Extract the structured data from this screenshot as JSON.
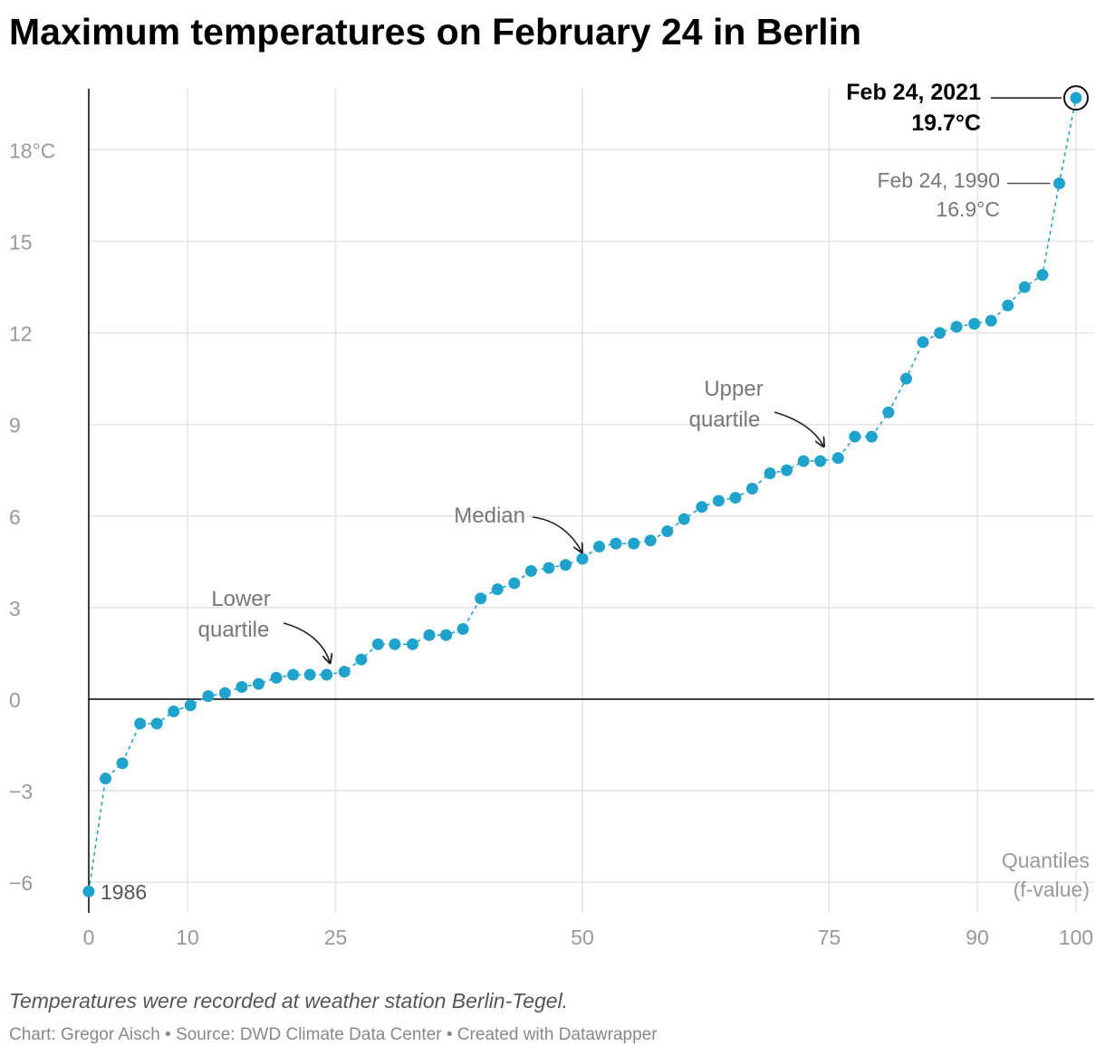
{
  "page": {
    "title": "Maximum temperatures on February 24 in Berlin",
    "notes": "Temperatures were recorded at weather station Berlin-Tegel.",
    "credits": {
      "chart_by": "Chart: Gregor Aisch",
      "source": "Source: DWD Climate Data Center",
      "tool": "Created with Datawrapper",
      "separator": "•"
    }
  },
  "colors": {
    "point": "#1fa3cc",
    "highlight_ring": "#111111",
    "grid": "#e3e3e3",
    "axis": "#000000",
    "tick_label": "#999999",
    "annotation": "#777777",
    "annotation_strong": "#000000"
  },
  "chart_data": {
    "type": "scatter",
    "title": "Maximum temperatures on February 24 in Berlin",
    "xlabel": "Quantiles (f-value)",
    "ylabel": "",
    "xlim": [
      0,
      100
    ],
    "ylim": [
      -7,
      19.7
    ],
    "x_ticks": [
      0,
      10,
      25,
      50,
      75,
      90,
      100
    ],
    "x_tick_labels": [
      "0",
      "10",
      "25",
      "50",
      "75",
      "90",
      "100"
    ],
    "y_ticks": [
      -6,
      -3,
      0,
      3,
      6,
      9,
      12,
      15,
      18
    ],
    "y_tick_labels": [
      "−6",
      "−3",
      "0",
      "3",
      "6",
      "9",
      "12",
      "15",
      "18°C"
    ],
    "grid": true,
    "connector": "dashed",
    "series": [
      {
        "name": "Maximum temperature",
        "x": [
          0,
          1.7,
          3.4,
          5.2,
          6.9,
          8.6,
          10.3,
          12.1,
          13.8,
          15.5,
          17.2,
          19.0,
          20.7,
          22.4,
          24.1,
          25.9,
          27.6,
          29.3,
          31.0,
          32.8,
          34.5,
          36.2,
          37.9,
          39.7,
          41.4,
          43.1,
          44.8,
          46.6,
          48.3,
          50.0,
          51.7,
          53.4,
          55.2,
          56.9,
          58.6,
          60.3,
          62.1,
          63.8,
          65.5,
          67.2,
          69.0,
          70.7,
          72.4,
          74.1,
          75.9,
          77.6,
          79.3,
          81.0,
          82.8,
          84.5,
          86.2,
          87.9,
          89.7,
          91.4,
          93.1,
          94.8,
          96.6,
          98.3,
          100
        ],
        "values": [
          -6.3,
          -2.6,
          -2.1,
          -0.8,
          -0.8,
          -0.4,
          -0.2,
          0.1,
          0.2,
          0.4,
          0.5,
          0.7,
          0.8,
          0.8,
          0.8,
          0.9,
          1.3,
          1.8,
          1.8,
          1.8,
          2.1,
          2.1,
          2.3,
          3.3,
          3.6,
          3.8,
          4.2,
          4.3,
          4.4,
          4.6,
          5.0,
          5.1,
          5.1,
          5.2,
          5.5,
          5.9,
          6.3,
          6.5,
          6.6,
          6.9,
          7.4,
          7.5,
          7.8,
          7.8,
          7.9,
          8.6,
          8.6,
          9.4,
          10.5,
          11.7,
          12.0,
          12.2,
          12.3,
          12.4,
          12.9,
          13.5,
          13.9,
          16.9,
          19.7
        ]
      }
    ],
    "annotations": {
      "first_point": "1986",
      "record": {
        "date": "Feb 24, 2021",
        "value": "19.7°C"
      },
      "second": {
        "date": "Feb 24, 1990",
        "value": "16.9°C"
      },
      "lower_quartile": [
        "Lower",
        "quartile"
      ],
      "median": "Median",
      "upper_quartile": [
        "Upper",
        "quartile"
      ],
      "x_axis_title": [
        "Quantiles",
        "(f-value)"
      ]
    }
  }
}
